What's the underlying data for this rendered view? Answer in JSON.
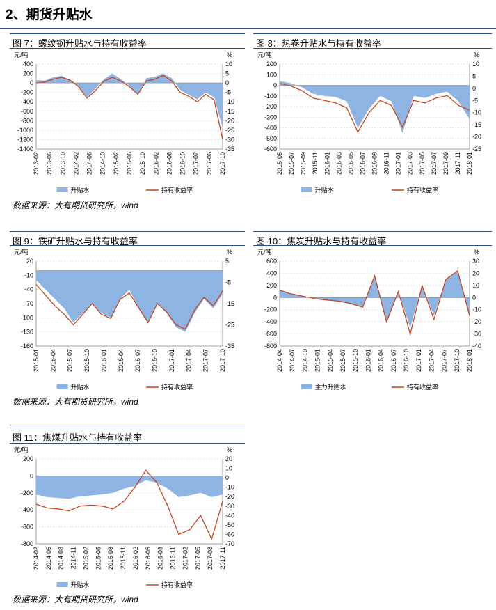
{
  "section_title": "2、期货升贴水",
  "source_text": "数据来源：大有期货研究所，wind",
  "colors": {
    "bar": "#8eb4e3",
    "line": "#c8441a",
    "rule": "#2d4f8e"
  },
  "figures": [
    {
      "title": "图 7：螺纹钢升贴水与持有收益率"
    },
    {
      "title": "图 8：热卷升贴水与持有收益率"
    },
    {
      "title": "图 9：铁矿升贴水与持有收益率"
    },
    {
      "title": "图 10：焦炭升贴水与持有收益率"
    },
    {
      "title": "图 11：焦煤升贴水与持有收益率"
    }
  ],
  "chart_data": [
    {
      "type": "area",
      "left_unit": "元/吨",
      "right_unit": "%",
      "y_left_ticks": [
        400,
        200,
        0,
        -200,
        -400,
        -600,
        -800,
        -1000,
        -1200,
        -1400
      ],
      "y_right_ticks": [
        10,
        5,
        0,
        -5,
        -10,
        -15,
        -20,
        -25,
        -30,
        -35
      ],
      "ylim_left": [
        -1400,
        400
      ],
      "ylim_right": [
        -35,
        10
      ],
      "x_labels": [
        "2013-02",
        "2013-06",
        "2013-10",
        "2014-02",
        "2014-06",
        "2014-10",
        "2015-02",
        "2015-06",
        "2015-10",
        "2016-02",
        "2016-06",
        "2016-10",
        "2017-02",
        "2017-06",
        "2017-10"
      ],
      "series": [
        {
          "name": "升贴水",
          "axis": "left",
          "kind": "area",
          "values": [
            60,
            50,
            120,
            150,
            60,
            -60,
            -300,
            -120,
            80,
            200,
            80,
            -60,
            -250,
            100,
            130,
            200,
            100,
            -150,
            -250,
            -350,
            -200,
            -300,
            -950
          ]
        },
        {
          "name": "持有收益率",
          "axis": "right",
          "kind": "line",
          "values": [
            0,
            0.5,
            2,
            3,
            1.5,
            -2,
            -8,
            -4,
            1,
            3,
            1,
            -2,
            -6,
            1,
            2,
            4,
            1,
            -5,
            -7,
            -10,
            -6,
            -9,
            -30
          ]
        }
      ]
    },
    {
      "type": "area",
      "left_unit": "元/吨",
      "right_unit": "%",
      "y_left_ticks": [
        200,
        100,
        0,
        -100,
        -200,
        -300,
        -400,
        -500,
        -600
      ],
      "y_right_ticks": [
        10,
        5,
        0,
        -5,
        -10,
        -15,
        -20,
        -25
      ],
      "ylim_left": [
        -600,
        200
      ],
      "ylim_right": [
        -25,
        10
      ],
      "x_labels": [
        "2015-05",
        "2015-07",
        "2015-09",
        "2015-11",
        "2016-01",
        "2016-03",
        "2016-05",
        "2016-07",
        "2016-09",
        "2016-11",
        "2017-01",
        "2017-03",
        "2017-05",
        "2017-07",
        "2017-09",
        "2017-11",
        "2018-01"
      ],
      "series": [
        {
          "name": "升贴水",
          "axis": "left",
          "kind": "area",
          "values": [
            40,
            20,
            -20,
            -80,
            -100,
            -110,
            -150,
            -400,
            -220,
            -100,
            -150,
            -450,
            -100,
            -120,
            -80,
            -60,
            -150,
            -320
          ]
        },
        {
          "name": "持有收益率",
          "axis": "right",
          "kind": "line",
          "values": [
            2,
            1,
            -1,
            -4,
            -5,
            -6,
            -8,
            -18,
            -10,
            -5,
            -7,
            -16,
            -5,
            -6,
            -4,
            -3,
            -7,
            -9
          ]
        }
      ]
    },
    {
      "type": "area",
      "left_unit": "元/吨",
      "right_unit": "%",
      "y_left_ticks": [
        20,
        -10,
        -40,
        -70,
        -100,
        -130,
        -160
      ],
      "y_right_ticks": [
        5,
        -5,
        -15,
        -25,
        -35
      ],
      "ylim_left": [
        -160,
        20
      ],
      "ylim_right": [
        -35,
        5
      ],
      "x_labels": [
        "2015-01",
        "2015-04",
        "2015-07",
        "2015-10",
        "2016-01",
        "2016-04",
        "2016-07",
        "2016-10",
        "2017-01",
        "2017-04",
        "2017-07",
        "2017-10"
      ],
      "series": [
        {
          "name": "升贴水",
          "axis": "left",
          "kind": "area",
          "values": [
            -20,
            -40,
            -60,
            -80,
            -110,
            -90,
            -70,
            -90,
            -100,
            -60,
            -40,
            -80,
            -110,
            -70,
            -90,
            -120,
            -130,
            -90,
            -60,
            -80,
            -50
          ]
        },
        {
          "name": "持有收益率",
          "axis": "right",
          "kind": "line",
          "values": [
            -6,
            -11,
            -16,
            -20,
            -25,
            -20,
            -15,
            -20,
            -22,
            -13,
            -10,
            -17,
            -24,
            -15,
            -19,
            -25,
            -27,
            -18,
            -12,
            -16,
            -9
          ]
        }
      ]
    },
    {
      "type": "area",
      "left_unit": "元/吨",
      "right_unit": "%",
      "y_left_ticks": [
        600,
        400,
        200,
        0,
        -200,
        -400,
        -600,
        -800
      ],
      "y_right_ticks": [
        30,
        20,
        10,
        0,
        -10,
        -20,
        -30,
        -40
      ],
      "ylim_left": [
        -800,
        600
      ],
      "ylim_right": [
        -40,
        30
      ],
      "x_labels": [
        "2014-04",
        "2014-07",
        "2014-10",
        "2015-01",
        "2015-04",
        "2015-07",
        "2015-10",
        "2016-01",
        "2016-04",
        "2016-07",
        "2016-10",
        "2017-01",
        "2017-04",
        "2017-07",
        "2017-10",
        "2018-01"
      ],
      "series": [
        {
          "name": "主力升贴水",
          "axis": "left",
          "kind": "area",
          "values": [
            120,
            60,
            20,
            -20,
            -40,
            -60,
            -100,
            -150,
            350,
            -400,
            100,
            -500,
            200,
            -300,
            300,
            450,
            -300
          ]
        },
        {
          "name": "持有收益率",
          "axis": "right",
          "kind": "line",
          "values": [
            6,
            3,
            1,
            -1,
            -2,
            -3,
            -5,
            -8,
            18,
            -20,
            5,
            -30,
            10,
            -18,
            15,
            22,
            -15
          ]
        }
      ]
    },
    {
      "type": "area",
      "left_unit": "元/吨",
      "right_unit": "%",
      "y_left_ticks": [
        200,
        0,
        -200,
        -400,
        -600,
        -800
      ],
      "y_right_ticks": [
        20,
        10,
        0,
        -10,
        -20,
        -30,
        -40,
        -50,
        -60,
        -70
      ],
      "ylim_left": [
        -800,
        200
      ],
      "ylim_right": [
        -70,
        20
      ],
      "x_labels": [
        "2014-02",
        "2014-05",
        "2014-08",
        "2014-11",
        "2015-02",
        "2015-05",
        "2015-08",
        "2015-11",
        "2016-02",
        "2016-05",
        "2016-08",
        "2016-11",
        "2017-02",
        "2017-05",
        "2017-08",
        "2017-11"
      ],
      "series": [
        {
          "name": "升贴水",
          "axis": "left",
          "kind": "area",
          "values": [
            -220,
            -250,
            -260,
            -270,
            -240,
            -230,
            -220,
            -200,
            -150,
            -120,
            -50,
            -80,
            -150,
            -250,
            -230,
            -200,
            -250,
            -220
          ]
        },
        {
          "name": "持有收益率",
          "axis": "right",
          "kind": "line",
          "values": [
            -28,
            -32,
            -33,
            -35,
            -30,
            -29,
            -30,
            -33,
            -25,
            -10,
            8,
            -5,
            -30,
            -60,
            -55,
            -40,
            -65,
            -25
          ]
        }
      ]
    }
  ]
}
